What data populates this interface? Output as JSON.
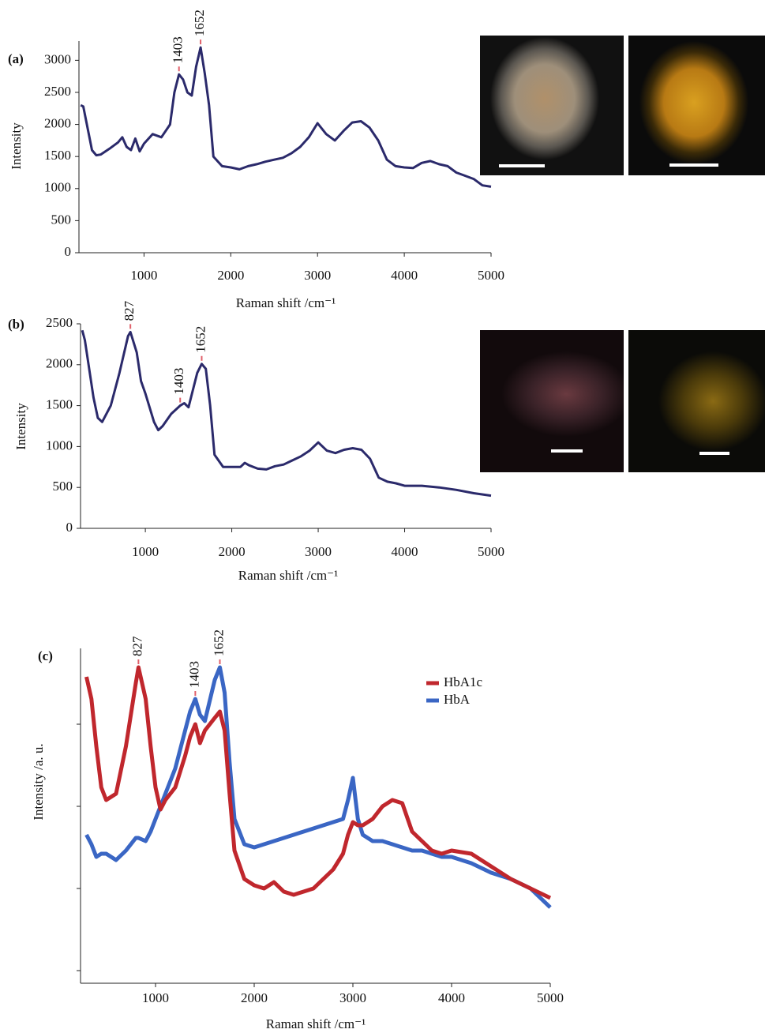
{
  "chart_data": [
    {
      "type": "line",
      "panel_label": "(a)",
      "x_label": "Raman shift /cm⁻¹",
      "y_label": "Intensity",
      "xlim": [
        250,
        5000
      ],
      "xticks": [
        1000,
        2000,
        3000,
        4000,
        5000
      ],
      "ylim": [
        0,
        3300
      ],
      "yticks": [
        0,
        500,
        1000,
        1500,
        2000,
        2500,
        3000
      ],
      "color": "#2b2a6b",
      "peak_labels": [
        {
          "value": 1403,
          "label": "1403"
        },
        {
          "value": 1652,
          "label": "1652"
        }
      ],
      "x": [
        270,
        300,
        400,
        450,
        500,
        600,
        700,
        750,
        800,
        850,
        900,
        950,
        1000,
        1100,
        1200,
        1300,
        1350,
        1403,
        1450,
        1500,
        1550,
        1600,
        1652,
        1700,
        1750,
        1800,
        1900,
        2000,
        2100,
        2200,
        2300,
        2400,
        2500,
        2600,
        2700,
        2800,
        2900,
        3000,
        3100,
        3200,
        3300,
        3400,
        3500,
        3600,
        3700,
        3800,
        3900,
        4000,
        4100,
        4200,
        4300,
        4400,
        4500,
        4600,
        4700,
        4800,
        4900,
        5000
      ],
      "values": [
        2300,
        2280,
        1600,
        1520,
        1530,
        1620,
        1720,
        1800,
        1650,
        1600,
        1780,
        1580,
        1700,
        1850,
        1800,
        2000,
        2500,
        2780,
        2700,
        2500,
        2450,
        2900,
        3200,
        2800,
        2300,
        1500,
        1350,
        1330,
        1300,
        1350,
        1380,
        1420,
        1450,
        1480,
        1550,
        1650,
        1800,
        2020,
        1850,
        1750,
        1900,
        2030,
        2050,
        1950,
        1750,
        1450,
        1350,
        1330,
        1320,
        1400,
        1430,
        1380,
        1350,
        1250,
        1200,
        1150,
        1050,
        1030
      ]
    },
    {
      "type": "line",
      "panel_label": "(b)",
      "x_label": "Raman shift /cm⁻¹",
      "y_label": "Intensity",
      "xlim": [
        250,
        5000
      ],
      "xticks": [
        1000,
        2000,
        3000,
        4000,
        5000
      ],
      "ylim": [
        0,
        2500
      ],
      "yticks": [
        0,
        500,
        1000,
        1500,
        2000,
        2500
      ],
      "color": "#2b2a6b",
      "peak_labels": [
        {
          "value": 827,
          "label": "827"
        },
        {
          "value": 1403,
          "label": "1403"
        },
        {
          "value": 1652,
          "label": "1652"
        }
      ],
      "x": [
        270,
        300,
        400,
        450,
        500,
        600,
        700,
        800,
        827,
        900,
        950,
        1000,
        1100,
        1150,
        1200,
        1300,
        1403,
        1450,
        1500,
        1600,
        1652,
        1700,
        1750,
        1800,
        1900,
        2000,
        2100,
        2150,
        2200,
        2300,
        2400,
        2500,
        2600,
        2700,
        2800,
        2900,
        3000,
        3100,
        3200,
        3300,
        3400,
        3500,
        3600,
        3700,
        3800,
        3900,
        4000,
        4200,
        4400,
        4600,
        4800,
        5000
      ],
      "values": [
        2420,
        2300,
        1600,
        1350,
        1300,
        1500,
        1900,
        2350,
        2400,
        2150,
        1800,
        1650,
        1300,
        1200,
        1250,
        1400,
        1500,
        1530,
        1480,
        1900,
        2010,
        1950,
        1500,
        900,
        750,
        750,
        750,
        800,
        770,
        730,
        720,
        760,
        780,
        830,
        880,
        950,
        1050,
        950,
        920,
        960,
        980,
        960,
        850,
        620,
        570,
        550,
        520,
        520,
        500,
        470,
        430,
        400
      ]
    },
    {
      "type": "line",
      "panel_label": "(c)",
      "x_label": "Raman shift /cm⁻¹",
      "y_label": "Intensity /a. u.",
      "xlim": [
        240,
        5000
      ],
      "xticks": [
        1000,
        2000,
        3000,
        4000,
        5000
      ],
      "ylim": [
        0,
        106
      ],
      "yticks": [
        4,
        30,
        56,
        82
      ],
      "show_ytick_labels": false,
      "legend": "upper right",
      "peak_labels": [
        {
          "value": 827,
          "label": "827"
        },
        {
          "value": 1403,
          "label": "1403"
        },
        {
          "value": 1652,
          "label": "1652"
        }
      ],
      "x": [
        300,
        350,
        400,
        450,
        500,
        600,
        700,
        800,
        827,
        900,
        950,
        1000,
        1050,
        1100,
        1200,
        1300,
        1350,
        1403,
        1450,
        1500,
        1600,
        1652,
        1700,
        1750,
        1800,
        1900,
        2000,
        2100,
        2200,
        2300,
        2400,
        2500,
        2600,
        2700,
        2800,
        2900,
        2950,
        3000,
        3050,
        3100,
        3200,
        3300,
        3400,
        3500,
        3600,
        3700,
        3800,
        3900,
        4000,
        4200,
        4400,
        4600,
        4800,
        5000
      ],
      "series": [
        {
          "name": "HbA1c",
          "color": "#c0272d",
          "values": [
            97,
            90,
            75,
            62,
            58,
            60,
            75,
            95,
            100,
            90,
            75,
            62,
            55,
            58,
            62,
            72,
            78,
            82,
            76,
            80,
            84,
            86,
            80,
            60,
            42,
            33,
            31,
            30,
            32,
            29,
            28,
            29,
            30,
            33,
            36,
            41,
            47,
            51,
            50,
            50,
            52,
            56,
            58,
            57,
            48,
            45,
            42,
            41,
            42,
            41,
            37,
            33,
            30,
            27
          ]
        },
        {
          "name": "HbA",
          "color": "#3a66c4",
          "values": [
            47,
            44,
            40,
            41,
            41,
            39,
            42,
            46,
            46,
            45,
            48,
            52,
            56,
            60,
            68,
            80,
            86,
            90,
            85,
            83,
            96,
            100,
            92,
            70,
            52,
            44,
            43,
            44,
            45,
            46,
            47,
            48,
            49,
            50,
            51,
            52,
            58,
            65,
            52,
            47,
            45,
            45,
            44,
            43,
            42,
            42,
            41,
            40,
            40,
            38,
            35,
            33,
            30,
            24
          ]
        }
      ]
    }
  ]
}
